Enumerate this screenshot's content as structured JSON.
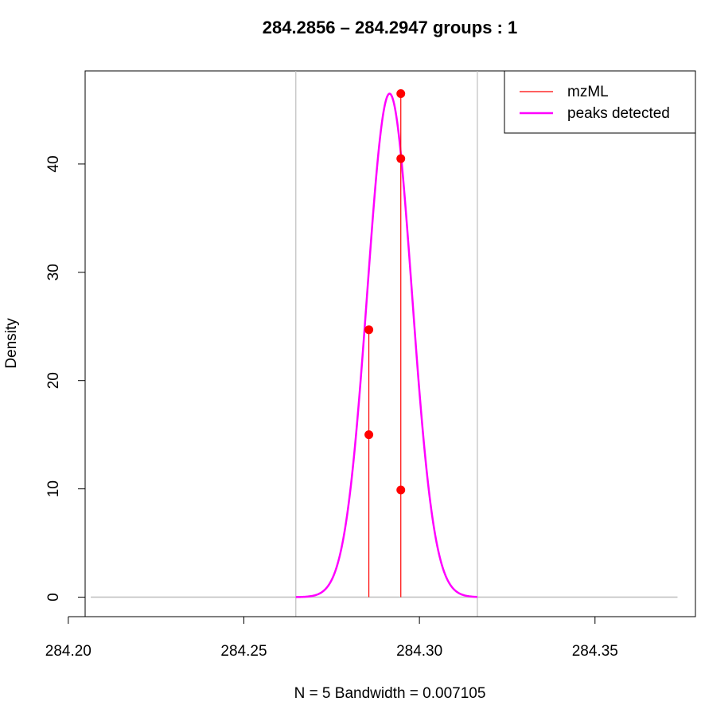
{
  "chart_data": {
    "type": "density",
    "title": "284.2856 – 284.2947  groups :  1",
    "xlabel": "N = 5   Bandwidth = 0.007105",
    "ylabel": "Density",
    "xlim": [
      284.2048,
      284.3786
    ],
    "ylim": [
      -1.8,
      48.6
    ],
    "x_ticks": [
      284.2,
      284.25,
      284.3,
      284.35
    ],
    "x_tick_labels": [
      "284.20",
      "284.25",
      "284.30",
      "284.35"
    ],
    "y_ticks": [
      0,
      10,
      20,
      30,
      40
    ],
    "y_tick_labels": [
      "0",
      "10",
      "20",
      "30",
      "40"
    ],
    "baseline": {
      "x_range": [
        284.2064,
        284.3735
      ],
      "y": 0
    },
    "group_bounds": [
      284.2648,
      284.3165
    ],
    "density_curve": {
      "name": "peaks detected",
      "mean": 284.2915,
      "sd": 0.00635,
      "peak": 46.5,
      "x_range": [
        284.2648,
        284.3165
      ],
      "color": "#ff00ff"
    },
    "mzml_points": [
      {
        "x": 284.2856,
        "y": 24.7
      },
      {
        "x": 284.2856,
        "y": 15.0
      },
      {
        "x": 284.2947,
        "y": 46.5
      },
      {
        "x": 284.2947,
        "y": 40.5
      },
      {
        "x": 284.2947,
        "y": 9.9
      }
    ],
    "legend": {
      "position": "top-right",
      "entries": [
        {
          "label": "mzML",
          "color": "#ff0000"
        },
        {
          "label": "peaks detected",
          "color": "#ff00ff"
        }
      ]
    },
    "colors": {
      "mzml": "#ff0000",
      "density": "#ff00ff",
      "bounds": "#bebebe",
      "baseline": "#bebebe"
    }
  }
}
